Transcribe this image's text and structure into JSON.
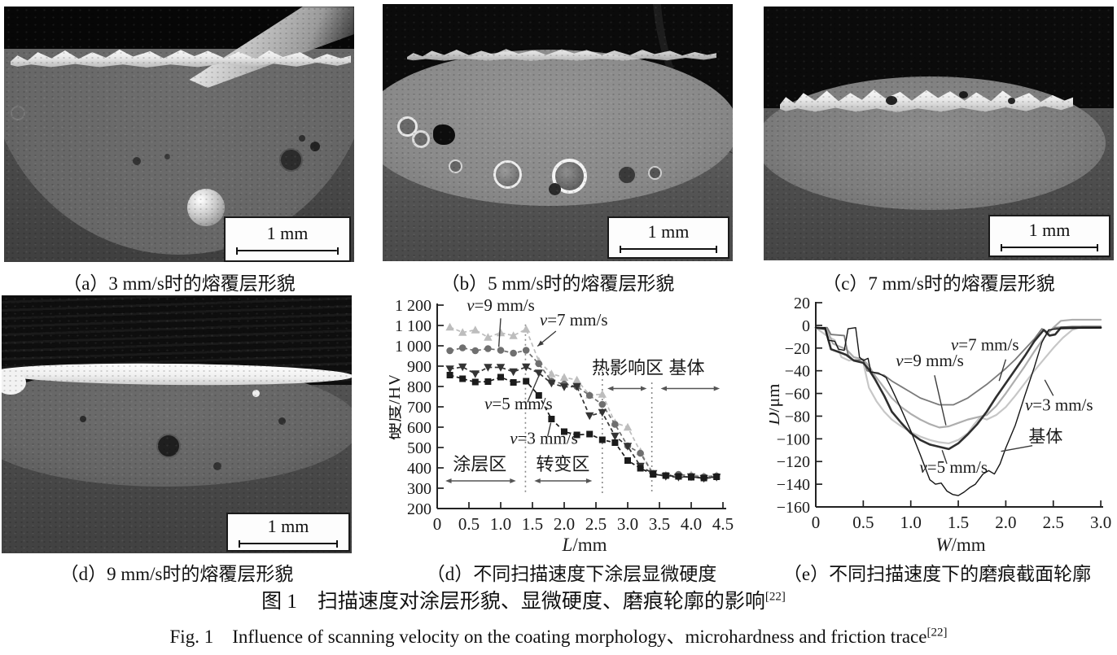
{
  "figure_captions": {
    "zh": "图 1　扫描速度对涂层形貌、显微硬度、磨痕轮廓的影响",
    "zh_sup": "[22]",
    "en": "Fig. 1　Influence of scanning velocity on the coating morphology、microhardness and friction trace",
    "en_sup": "[22]"
  },
  "panels": [
    {
      "id": "a",
      "caption": "（a）3 mm/s时的熔覆层形貌",
      "scalebar": "1 mm"
    },
    {
      "id": "b",
      "caption": "（b）5 mm/s时的熔覆层形貌",
      "scalebar": "1 mm"
    },
    {
      "id": "c",
      "caption": "（c）7 mm/s时的熔覆层形貌",
      "scalebar": "1 mm"
    },
    {
      "id": "d_sem",
      "caption": "（d）9 mm/s时的熔覆层形貌",
      "scalebar": "1 mm"
    },
    {
      "id": "d_chart",
      "caption": "（d）不同扫描速度下涂层显微硬度"
    },
    {
      "id": "e_chart",
      "caption": "（e）不同扫描速度下的磨痕截面轮廓"
    }
  ],
  "chart_data": [
    {
      "type": "line",
      "title": "（d）不同扫描速度下涂层显微硬度",
      "xlabel": "L/mm",
      "ylabel": "硬度/HV",
      "xlim": [
        0,
        4.5
      ],
      "ylim": [
        200,
        1200
      ],
      "grid": false,
      "legend_position": "inline-annotations",
      "xtick_labels": [
        "0",
        "0.5",
        "1.0",
        "1.5",
        "2.0",
        "2.5",
        "3.0",
        "3.5",
        "4.0",
        "4.5"
      ],
      "ytick_labels": [
        "200",
        "300",
        "400",
        "500",
        "600",
        "700",
        "800",
        "900",
        "1 000",
        "1 100",
        "1 200"
      ],
      "x": [
        0.2,
        0.4,
        0.6,
        0.8,
        1.0,
        1.2,
        1.4,
        1.6,
        1.8,
        2.0,
        2.2,
        2.4,
        2.6,
        2.8,
        3.0,
        3.2,
        3.4,
        3.6,
        3.8,
        4.0,
        4.2,
        4.4
      ],
      "series": [
        {
          "name": "v=7 mm/s",
          "marker": "triangle-up",
          "color": "#bdbdbd",
          "values": [
            1092,
            1066,
            1078,
            1042,
            1064,
            1050,
            1082,
            925,
            862,
            845,
            832,
            758,
            762,
            622,
            600,
            480,
            372,
            365,
            362,
            366,
            358,
            362
          ]
        },
        {
          "name": "v=9 mm/s",
          "marker": "circle",
          "color": "#6f6f6f",
          "values": [
            976,
            990,
            976,
            986,
            978,
            964,
            978,
            912,
            826,
            812,
            800,
            756,
            712,
            614,
            508,
            472,
            370,
            362,
            368,
            360,
            356,
            360
          ]
        },
        {
          "name": "v=5 mm/s",
          "marker": "triangle-down",
          "color": "#343434",
          "values": [
            886,
            896,
            862,
            894,
            894,
            872,
            896,
            866,
            816,
            798,
            800,
            656,
            672,
            556,
            506,
            408,
            372,
            358,
            354,
            356,
            348,
            354
          ]
        },
        {
          "name": "v=3 mm/s",
          "marker": "square",
          "color": "#1b1b1b",
          "values": [
            856,
            838,
            822,
            824,
            846,
            820,
            826,
            756,
            640,
            578,
            562,
            566,
            538,
            524,
            436,
            398,
            368,
            362,
            358,
            354,
            350,
            356
          ]
        }
      ],
      "dividers": [
        {
          "x": 1.39,
          "y_top": 1105,
          "y_bottom": 276
        },
        {
          "x": 2.6,
          "y_top": 908,
          "y_bottom": 276
        },
        {
          "x": 3.38,
          "y_top": 820,
          "y_bottom": 276
        }
      ],
      "regions": [
        {
          "label": "涂层区",
          "tx": 0.67,
          "ty": 388,
          "ax1": 0.13,
          "ax2": 1.24,
          "ay": 336
        },
        {
          "label": "转变区",
          "tx": 1.98,
          "ty": 388,
          "ax1": 1.53,
          "ax2": 2.44,
          "ay": 336
        },
        {
          "label": "热影响区",
          "tx": 3.0,
          "ty": 862,
          "ax1": 2.68,
          "ax2": 3.3,
          "ay": 790
        },
        {
          "label": "基体",
          "tx": 3.93,
          "ty": 862,
          "ax1": 3.52,
          "ax2": 4.45,
          "ay": 790
        }
      ],
      "annotations": [
        {
          "label": "v=9 mm/s",
          "tx": 1.0,
          "ty": 1172,
          "lx1": 1.0,
          "ly1": 1135,
          "lx2": 0.97,
          "ly2": 995,
          "arrow": false
        },
        {
          "label": "v=7 mm/s",
          "tx": 2.15,
          "ty": 1100,
          "lx1": 1.87,
          "ly1": 1072,
          "lx2": 1.58,
          "ly2": 998,
          "arrow": true
        },
        {
          "label": "v=5 mm/s",
          "tx": 1.28,
          "ty": 688,
          "lx1": 1.42,
          "ly1": 722,
          "lx2": 1.6,
          "ly2": 852,
          "arrow": false
        },
        {
          "label": "v=3 mm/s",
          "tx": 1.68,
          "ty": 518,
          "lx1": 1.74,
          "ly1": 556,
          "lx2": 1.79,
          "ly2": 622,
          "arrow": false
        }
      ]
    },
    {
      "type": "line",
      "title": "（e）不同扫描速度下的磨痕截面轮廓",
      "xlabel": "W/mm",
      "ylabel": "D/μm",
      "xlim": [
        0,
        3.0
      ],
      "ylim": [
        -160,
        20
      ],
      "grid": false,
      "legend_position": "inline-annotations",
      "xtick_labels": [
        "0",
        "0.5",
        "1.0",
        "1.5",
        "2.0",
        "2.5",
        "3.0"
      ],
      "ytick_labels": [
        "20",
        "0",
        "−20",
        "−40",
        "−60",
        "−80",
        "−100",
        "−120",
        "−140",
        "−160"
      ],
      "series": [
        {
          "name": "v=3 mm/s",
          "color": "#c7c7c7",
          "width": 2.2,
          "points": [
            [
              0,
              -2
            ],
            [
              0.13,
              -10
            ],
            [
              0.2,
              -13
            ],
            [
              0.27,
              -28
            ],
            [
              0.35,
              -31
            ],
            [
              0.42,
              -30
            ],
            [
              0.5,
              -33
            ],
            [
              0.56,
              -55
            ],
            [
              0.64,
              -67
            ],
            [
              0.72,
              -76
            ],
            [
              0.8,
              -83
            ],
            [
              0.9,
              -89
            ],
            [
              1.0,
              -94
            ],
            [
              1.1,
              -98
            ],
            [
              1.2,
              -101
            ],
            [
              1.3,
              -103
            ],
            [
              1.4,
              -104
            ],
            [
              1.5,
              -101
            ],
            [
              1.6,
              -95
            ],
            [
              1.66,
              -88
            ],
            [
              1.73,
              -81
            ],
            [
              1.8,
              -83
            ],
            [
              1.9,
              -79
            ],
            [
              2.0,
              -72
            ],
            [
              2.1,
              -62
            ],
            [
              2.2,
              -51
            ],
            [
              2.3,
              -40
            ],
            [
              2.4,
              -30
            ],
            [
              2.5,
              -20
            ],
            [
              2.6,
              -11
            ],
            [
              2.7,
              -4
            ],
            [
              2.8,
              -1
            ],
            [
              3.0,
              -1
            ]
          ]
        },
        {
          "name": "v=9 mm/s",
          "color": "#aeaeae",
          "width": 2.2,
          "points": [
            [
              0,
              -2
            ],
            [
              0.12,
              -4
            ],
            [
              0.18,
              -16
            ],
            [
              0.26,
              -19
            ],
            [
              0.32,
              -21
            ],
            [
              0.4,
              -28
            ],
            [
              0.5,
              -30
            ],
            [
              0.56,
              -36
            ],
            [
              0.62,
              -44
            ],
            [
              0.72,
              -55
            ],
            [
              0.8,
              -64
            ],
            [
              0.9,
              -72
            ],
            [
              1.0,
              -78
            ],
            [
              1.1,
              -83
            ],
            [
              1.2,
              -87
            ],
            [
              1.3,
              -90
            ],
            [
              1.4,
              -89
            ],
            [
              1.5,
              -86
            ],
            [
              1.6,
              -83
            ],
            [
              1.7,
              -81
            ],
            [
              1.8,
              -79
            ],
            [
              1.9,
              -71
            ],
            [
              2.0,
              -60
            ],
            [
              2.1,
              -48
            ],
            [
              2.2,
              -36
            ],
            [
              2.3,
              -23
            ],
            [
              2.4,
              -11
            ],
            [
              2.5,
              -2
            ],
            [
              2.58,
              4
            ],
            [
              2.7,
              5
            ],
            [
              3.0,
              5
            ]
          ]
        },
        {
          "name": "v=7 mm/s",
          "color": "#7a7a7a",
          "width": 1.8,
          "points": [
            [
              0,
              -2
            ],
            [
              0.12,
              -2
            ],
            [
              0.16,
              -8
            ],
            [
              0.3,
              -9
            ],
            [
              0.34,
              -26
            ],
            [
              0.4,
              -31
            ],
            [
              0.5,
              -30
            ],
            [
              0.54,
              -40
            ],
            [
              0.62,
              -42
            ],
            [
              0.72,
              -44
            ],
            [
              0.8,
              -49
            ],
            [
              0.9,
              -54
            ],
            [
              1.0,
              -59
            ],
            [
              1.1,
              -64
            ],
            [
              1.2,
              -67
            ],
            [
              1.3,
              -70
            ],
            [
              1.45,
              -70
            ],
            [
              1.6,
              -64
            ],
            [
              1.7,
              -58
            ],
            [
              1.8,
              -52
            ],
            [
              1.9,
              -45
            ],
            [
              2.0,
              -38
            ],
            [
              2.1,
              -30
            ],
            [
              2.2,
              -21
            ],
            [
              2.3,
              -12
            ],
            [
              2.38,
              -3
            ],
            [
              2.44,
              -6
            ],
            [
              2.52,
              -2
            ],
            [
              2.7,
              -1
            ],
            [
              3.0,
              -1
            ]
          ]
        },
        {
          "name": "v=5 mm/s",
          "color": "#2f2f2f",
          "width": 2.6,
          "points": [
            [
              0,
              -2
            ],
            [
              0.1,
              -3
            ],
            [
              0.16,
              -21
            ],
            [
              0.26,
              -24
            ],
            [
              0.32,
              -26
            ],
            [
              0.4,
              -31
            ],
            [
              0.5,
              -33
            ],
            [
              0.56,
              -39
            ],
            [
              0.62,
              -47
            ],
            [
              0.72,
              -62
            ],
            [
              0.8,
              -76
            ],
            [
              0.9,
              -86
            ],
            [
              1.0,
              -95
            ],
            [
              1.1,
              -101
            ],
            [
              1.2,
              -105
            ],
            [
              1.3,
              -107
            ],
            [
              1.4,
              -109
            ],
            [
              1.5,
              -104
            ],
            [
              1.6,
              -96
            ],
            [
              1.7,
              -87
            ],
            [
              1.8,
              -76
            ],
            [
              1.9,
              -63
            ],
            [
              2.0,
              -51
            ],
            [
              2.1,
              -39
            ],
            [
              2.2,
              -27
            ],
            [
              2.3,
              -14
            ],
            [
              2.4,
              -4
            ],
            [
              2.46,
              -9
            ],
            [
              2.52,
              -8
            ],
            [
              2.58,
              -2
            ],
            [
              2.7,
              -2
            ],
            [
              3.0,
              -2
            ]
          ]
        },
        {
          "name": "基体",
          "color": "#151515",
          "width": 1.4,
          "points": [
            [
              0,
              -2
            ],
            [
              0.1,
              -2
            ],
            [
              0.13,
              -13
            ],
            [
              0.2,
              -14
            ],
            [
              0.24,
              -21
            ],
            [
              0.3,
              -22
            ],
            [
              0.34,
              -3
            ],
            [
              0.42,
              -2
            ],
            [
              0.46,
              -28
            ],
            [
              0.5,
              -31
            ],
            [
              0.55,
              -29
            ],
            [
              0.58,
              -41
            ],
            [
              0.66,
              -42
            ],
            [
              0.74,
              -46
            ],
            [
              0.8,
              -56
            ],
            [
              0.9,
              -74
            ],
            [
              1.0,
              -93
            ],
            [
              1.1,
              -114
            ],
            [
              1.2,
              -136
            ],
            [
              1.26,
              -140
            ],
            [
              1.32,
              -139
            ],
            [
              1.38,
              -146
            ],
            [
              1.44,
              -149
            ],
            [
              1.5,
              -150
            ],
            [
              1.56,
              -147
            ],
            [
              1.62,
              -143
            ],
            [
              1.68,
              -140
            ],
            [
              1.76,
              -131
            ],
            [
              1.82,
              -128
            ],
            [
              1.88,
              -131
            ],
            [
              1.94,
              -122
            ],
            [
              2.0,
              -108
            ],
            [
              2.1,
              -88
            ],
            [
              2.2,
              -62
            ],
            [
              2.3,
              -37
            ],
            [
              2.38,
              -15
            ],
            [
              2.45,
              -4
            ],
            [
              2.55,
              -3
            ],
            [
              3.0,
              -2
            ]
          ]
        }
      ],
      "annotations": [
        {
          "label": "v=7 mm/s",
          "tx": 1.78,
          "ty": -22,
          "lx1": 2.0,
          "ly1": -30,
          "lx2": 1.93,
          "ly2": -49,
          "arrow": false
        },
        {
          "label": "v=9 mm/s",
          "tx": 1.2,
          "ty": -36,
          "lx1": 1.25,
          "ly1": -44,
          "lx2": 1.37,
          "ly2": -88,
          "arrow": false
        },
        {
          "label": "v=3 mm/s",
          "tx": 2.56,
          "ty": -75,
          "lx1": 2.5,
          "ly1": -62,
          "lx2": 2.41,
          "ly2": -48,
          "arrow": false
        },
        {
          "label": "基体",
          "tx": 2.42,
          "ty": -103,
          "lx1": 2.28,
          "ly1": -106,
          "lx2": 1.95,
          "ly2": -111,
          "arrow": false
        },
        {
          "label": "v=5 mm/s",
          "tx": 1.45,
          "ty": -130,
          "lx1": 1.38,
          "ly1": -122,
          "lx2": 1.33,
          "ly2": -110,
          "arrow": false
        }
      ]
    }
  ]
}
